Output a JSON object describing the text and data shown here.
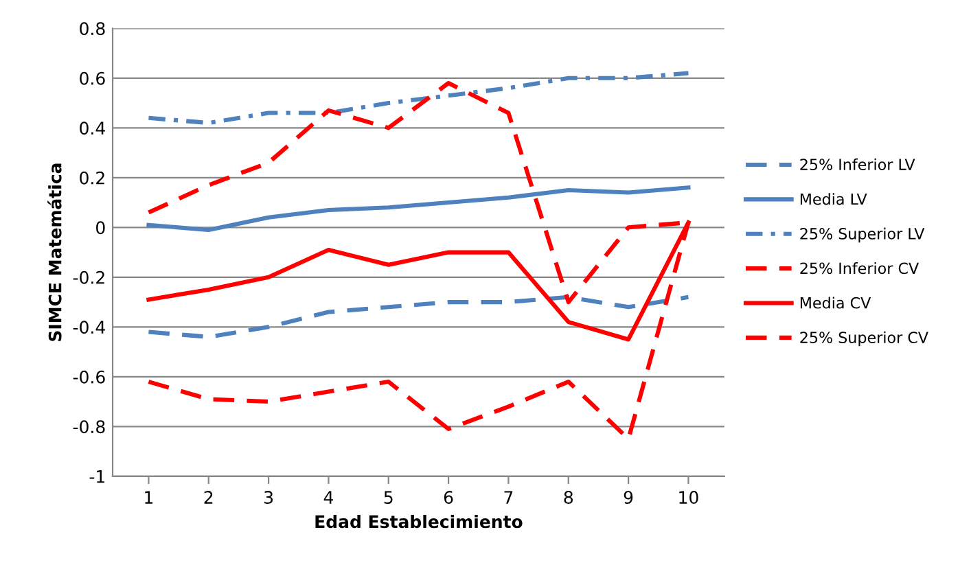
{
  "chart_data": {
    "type": "line",
    "xlabel": "Edad Establecimiento",
    "ylabel": "SIMCE Matemática",
    "categories": [
      "1",
      "2",
      "3",
      "4",
      "5",
      "6",
      "7",
      "8",
      "9",
      "10"
    ],
    "ylim": [
      -1,
      0.8
    ],
    "yticks": [
      {
        "value": -1,
        "label": "-1"
      },
      {
        "value": -0.8,
        "label": "-0.8"
      },
      {
        "value": -0.6,
        "label": "-0.6"
      },
      {
        "value": -0.4,
        "label": "-0.4"
      },
      {
        "value": -0.2,
        "label": "-0.2"
      },
      0,
      0.2,
      0.4,
      0.6,
      0.8
    ],
    "grid": "y",
    "legend": "right",
    "marker": "none",
    "series": [
      {
        "name": "25% Inferior LV",
        "color": "#4f81bd",
        "line_style": "dashed",
        "values": [
          -0.42,
          -0.44,
          -0.4,
          -0.34,
          -0.32,
          -0.3,
          -0.3,
          -0.28,
          -0.32,
          -0.28
        ]
      },
      {
        "name": "Media LV",
        "color": "#4f81bd",
        "line_style": "solid",
        "values": [
          0.01,
          -0.01,
          0.04,
          0.07,
          0.08,
          0.1,
          0.12,
          0.15,
          0.14,
          0.16
        ]
      },
      {
        "name": "25% Superior LV",
        "color": "#4f81bd",
        "line_style": "dashdot",
        "values": [
          0.44,
          0.42,
          0.46,
          0.46,
          0.5,
          0.53,
          0.56,
          0.6,
          0.6,
          0.62
        ]
      },
      {
        "name": "25% Inferior CV",
        "color": "#ff0000",
        "line_style": "dashed",
        "values": [
          -0.62,
          -0.69,
          -0.7,
          -0.66,
          -0.62,
          -0.81,
          -0.72,
          -0.62,
          -0.85,
          0.02
        ]
      },
      {
        "name": "Media CV",
        "color": "#ff0000",
        "line_style": "solid",
        "values": [
          -0.29,
          -0.25,
          -0.2,
          -0.09,
          -0.15,
          -0.1,
          -0.1,
          -0.38,
          -0.45,
          0.02
        ]
      },
      {
        "name": "25% Superior CV",
        "color": "#ff0000",
        "line_style": "dashed",
        "values": [
          0.06,
          0.17,
          0.26,
          0.47,
          0.4,
          0.58,
          0.46,
          -0.3,
          0.0,
          0.02
        ]
      }
    ]
  }
}
